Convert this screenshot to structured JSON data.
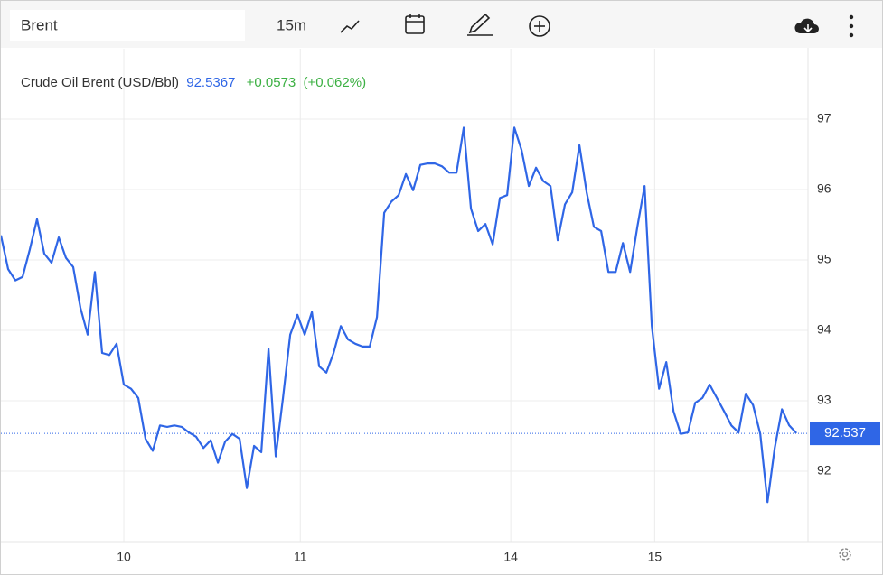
{
  "toolbar": {
    "symbol": "Brent",
    "interval": "15m"
  },
  "chart_data": {
    "type": "line",
    "title": "Crude Oil Brent (USD/Bbl)",
    "last_price": 92.5367,
    "change": {
      "value": 0.0573,
      "label": "+0.0573"
    },
    "change_percent": {
      "value": 0.062,
      "label": "(+0.062%)"
    },
    "color": "#2f66e6",
    "values": [
      95.35,
      94.87,
      94.71,
      94.76,
      95.15,
      95.58,
      95.09,
      94.96,
      95.32,
      95.03,
      94.9,
      94.32,
      93.94,
      94.83,
      93.68,
      93.65,
      93.81,
      93.23,
      93.17,
      93.04,
      92.46,
      92.29,
      92.65,
      92.63,
      92.65,
      92.63,
      92.55,
      92.49,
      92.33,
      92.44,
      92.12,
      92.42,
      92.53,
      92.46,
      91.76,
      92.36,
      92.27,
      93.74,
      92.21,
      93.04,
      93.94,
      94.22,
      93.94,
      94.26,
      93.49,
      93.4,
      93.68,
      94.06,
      93.87,
      93.81,
      93.77,
      93.77,
      94.19,
      95.67,
      95.83,
      95.92,
      96.22,
      95.99,
      96.35,
      96.37,
      96.37,
      96.33,
      96.24,
      96.24,
      96.88,
      95.73,
      95.41,
      95.51,
      95.22,
      95.88,
      95.92,
      96.88,
      96.56,
      96.05,
      96.31,
      96.12,
      96.05,
      95.28,
      95.79,
      95.96,
      96.63,
      95.96,
      95.47,
      95.41,
      94.83,
      94.83,
      95.24,
      94.83,
      95.47,
      96.05,
      94.06,
      93.17,
      93.55,
      92.85,
      92.53,
      92.55,
      92.97,
      93.04,
      93.23,
      93.04,
      92.85,
      92.65,
      92.55,
      93.1,
      92.94,
      92.53,
      91.56,
      92.33,
      92.88,
      92.65,
      92.54
    ],
    "xlim": [
      0,
      111.6
    ],
    "xticks": [
      {
        "value": 17,
        "label": "10"
      },
      {
        "value": 41.4,
        "label": "11"
      },
      {
        "value": 70.5,
        "label": "14"
      },
      {
        "value": 90.4,
        "label": "15"
      }
    ],
    "ylim": [
      91,
      98
    ],
    "yticks": [
      92,
      93,
      94,
      95,
      96,
      97
    ],
    "price_line": 92.537,
    "grid": true
  }
}
